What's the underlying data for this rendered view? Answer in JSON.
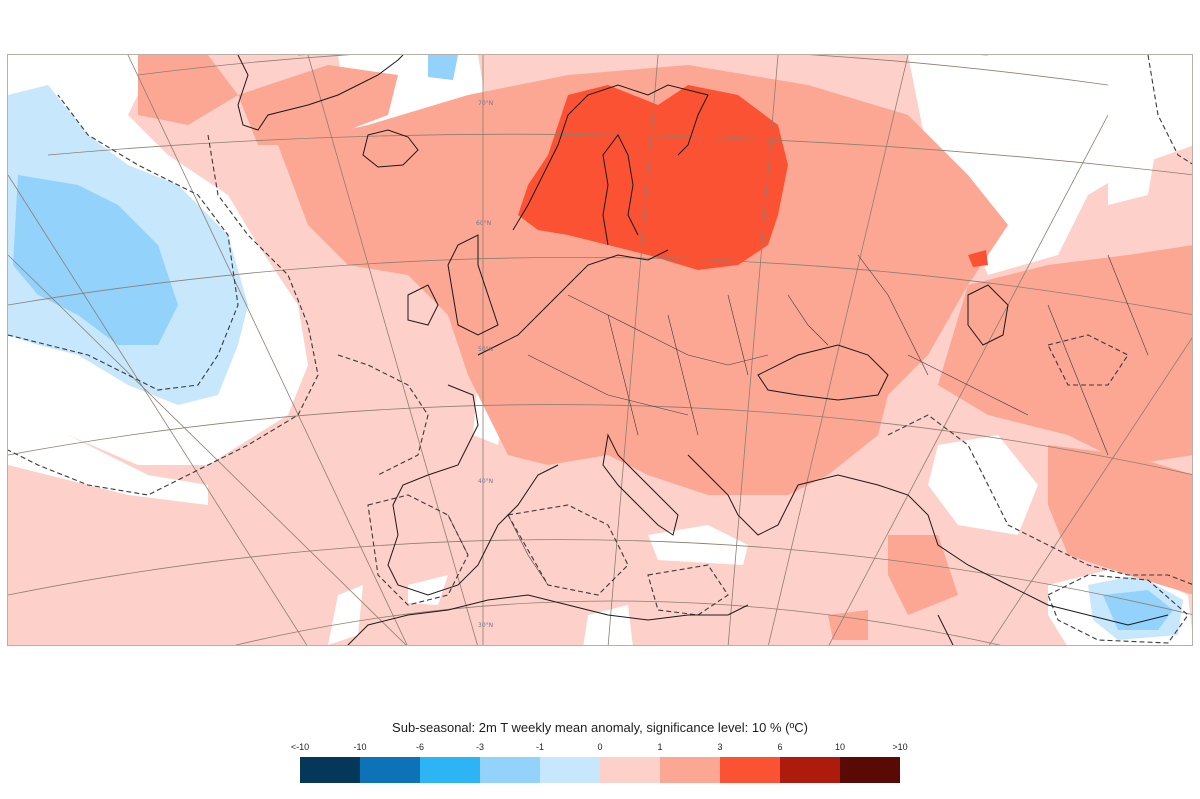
{
  "map": {
    "latitude_labels": [
      "70°N",
      "60°N",
      "50°N",
      "40°N",
      "30°N"
    ],
    "colors": {
      "land_positive_light": "#fdd0c9",
      "positive_mid": "#fca793",
      "positive_strong": "#fb5234",
      "negative_light": "#c7e7fc",
      "negative_mid": "#92d2fb",
      "neutral": "#ffffff",
      "coast": "#1a1a1a",
      "graticule": "#8c7f70"
    }
  },
  "legend": {
    "title": "Sub-seasonal: 2m T weekly mean anomaly, significance level: 10 % (ºC)",
    "ticks": [
      "<-10",
      "-10",
      "-6",
      "-3",
      "-1",
      "0",
      "1",
      "3",
      "6",
      "10",
      ">10"
    ],
    "swatches": [
      "#05375a",
      "#0e72b8",
      "#2db4f5",
      "#92d2fb",
      "#c7e7fc",
      "#fdd0c9",
      "#fca793",
      "#fb5234",
      "#ad1b0c",
      "#5a0a04"
    ]
  }
}
